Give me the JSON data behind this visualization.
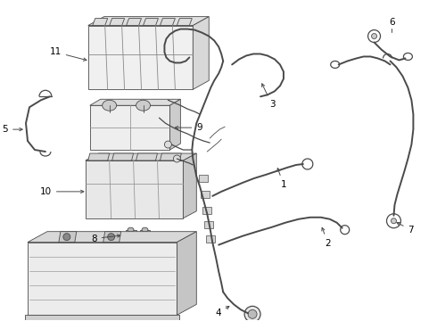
{
  "background_color": "#ffffff",
  "line_color": "#4a4a4a",
  "label_color": "#000000",
  "label_fontsize": 7.5,
  "fig_width": 4.9,
  "fig_height": 3.6,
  "dpi": 100
}
